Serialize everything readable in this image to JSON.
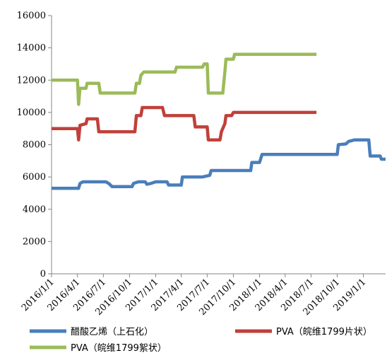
{
  "chart_data": {
    "type": "line",
    "title": "",
    "xlabel": "",
    "ylabel": "",
    "ylim": [
      0,
      16000
    ],
    "y_ticks": [
      0,
      2000,
      4000,
      6000,
      8000,
      10000,
      12000,
      14000,
      16000
    ],
    "x_ticks": [
      "2016/1/1",
      "2016/4/1",
      "2016/7/1",
      "2016/10/1",
      "2017/1/1",
      "2017/4/1",
      "2017/7/1",
      "2017/10/1",
      "2018/1/1",
      "2018/4/1",
      "2018/7/1",
      "2018/10/1",
      "2019/1/1"
    ],
    "xlim": [
      "2016/1/1",
      "2019/3/20"
    ],
    "grid": false,
    "legend_position": "bottom",
    "series": [
      {
        "name": "醋酸乙烯（上石化）",
        "color": "#4a7ebb",
        "points": [
          [
            "2016/1/1",
            5300
          ],
          [
            "2016/4/5",
            5300
          ],
          [
            "2016/4/10",
            5600
          ],
          [
            "2016/4/20",
            5700
          ],
          [
            "2016/7/10",
            5700
          ],
          [
            "2016/7/20",
            5600
          ],
          [
            "2016/8/1",
            5400
          ],
          [
            "2016/10/10",
            5400
          ],
          [
            "2016/10/15",
            5600
          ],
          [
            "2016/11/1",
            5700
          ],
          [
            "2016/11/25",
            5700
          ],
          [
            "2016/12/1",
            5550
          ],
          [
            "2016/12/15",
            5600
          ],
          [
            "2017/1/1",
            5700
          ],
          [
            "2017/2/10",
            5700
          ],
          [
            "2017/2/15",
            5500
          ],
          [
            "2017/4/1",
            5500
          ],
          [
            "2017/4/5",
            6000
          ],
          [
            "2017/6/15",
            6000
          ],
          [
            "2017/7/10",
            6100
          ],
          [
            "2017/7/15",
            6400
          ],
          [
            "2017/12/1",
            6400
          ],
          [
            "2017/12/5",
            6900
          ],
          [
            "2018/1/1",
            6900
          ],
          [
            "2018/1/10",
            7400
          ],
          [
            "2018/10/1",
            7400
          ],
          [
            "2018/10/5",
            8000
          ],
          [
            "2018/11/1",
            8050
          ],
          [
            "2018/11/10",
            8200
          ],
          [
            "2018/12/1",
            8300
          ],
          [
            "2019/1/20",
            8300
          ],
          [
            "2019/1/25",
            7300
          ],
          [
            "2019/3/1",
            7300
          ],
          [
            "2019/3/5",
            7100
          ],
          [
            "2019/3/20",
            7100
          ]
        ]
      },
      {
        "name": "PVA（皖维1799片状）",
        "color": "#c0403a",
        "points": [
          [
            "2016/1/1",
            9000
          ],
          [
            "2016/4/1",
            9000
          ],
          [
            "2016/4/5",
            8300
          ],
          [
            "2016/4/10",
            9200
          ],
          [
            "2016/5/1",
            9300
          ],
          [
            "2016/5/5",
            9600
          ],
          [
            "2016/6/10",
            9600
          ],
          [
            "2016/6/15",
            8800
          ],
          [
            "2016/10/20",
            8800
          ],
          [
            "2016/10/25",
            9800
          ],
          [
            "2016/11/10",
            9800
          ],
          [
            "2016/11/15",
            10300
          ],
          [
            "2017/1/25",
            10300
          ],
          [
            "2017/2/1",
            9800
          ],
          [
            "2017/5/15",
            9800
          ],
          [
            "2017/5/20",
            9100
          ],
          [
            "2017/7/1",
            9100
          ],
          [
            "2017/7/5",
            8300
          ],
          [
            "2017/8/15",
            8300
          ],
          [
            "2017/8/20",
            8800
          ],
          [
            "2017/9/1",
            9300
          ],
          [
            "2017/9/5",
            9800
          ],
          [
            "2017/9/25",
            9800
          ],
          [
            "2017/10/1",
            10000
          ],
          [
            "2018/7/20",
            10000
          ]
        ]
      },
      {
        "name": "PVA（皖维1799絮状）",
        "color": "#9bbb59",
        "points": [
          [
            "2016/1/1",
            12000
          ],
          [
            "2016/4/1",
            12000
          ],
          [
            "2016/4/5",
            10500
          ],
          [
            "2016/4/10",
            11500
          ],
          [
            "2016/5/1",
            11500
          ],
          [
            "2016/5/5",
            11800
          ],
          [
            "2016/6/15",
            11800
          ],
          [
            "2016/6/20",
            11200
          ],
          [
            "2016/10/20",
            11200
          ],
          [
            "2016/10/25",
            11800
          ],
          [
            "2016/11/5",
            11800
          ],
          [
            "2016/11/10",
            12300
          ],
          [
            "2016/11/20",
            12500
          ],
          [
            "2017/3/10",
            12500
          ],
          [
            "2017/3/15",
            12800
          ],
          [
            "2017/6/15",
            12800
          ],
          [
            "2017/6/20",
            13000
          ],
          [
            "2017/7/1",
            13000
          ],
          [
            "2017/7/5",
            11200
          ],
          [
            "2017/8/25",
            11200
          ],
          [
            "2017/9/1",
            12500
          ],
          [
            "2017/9/5",
            13300
          ],
          [
            "2017/10/1",
            13300
          ],
          [
            "2017/10/5",
            13600
          ],
          [
            "2018/7/20",
            13600
          ]
        ]
      }
    ]
  }
}
